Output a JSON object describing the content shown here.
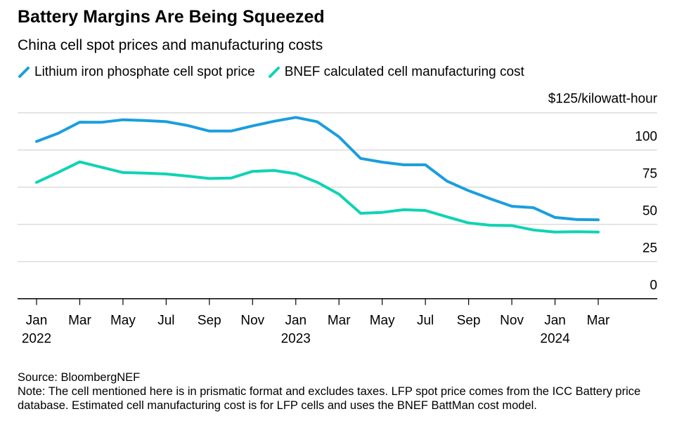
{
  "title": "Battery Margins Are Being Squeezed",
  "subtitle": "China cell spot prices and manufacturing costs",
  "legend": [
    {
      "label": "Lithium iron phosphate cell spot price",
      "color": "#1a9ede"
    },
    {
      "label": "BNEF calculated cell manufacturing cost",
      "color": "#0fd3b4"
    }
  ],
  "footer": {
    "source": "Source: BloombergNEF",
    "note": "Note: The cell mentioned here is in prismatic format and excludes taxes. LFP spot price comes from the ICC Battery price database. Estimated cell manufacturing cost is for LFP cells and uses the BNEF BattMan cost model."
  },
  "chart_data": {
    "type": "line",
    "title": "Battery Margins Are Being Squeezed",
    "ylabel": "$125/kilowatt-hour",
    "ylim": [
      0,
      125
    ],
    "yticks": [
      0,
      25,
      50,
      75,
      100
    ],
    "ytick_top_label": "$125/kilowatt-hour",
    "grid": true,
    "y_axis_side": "right",
    "legend_placement": "top-left",
    "x": [
      "2022-01",
      "2022-02",
      "2022-03",
      "2022-04",
      "2022-05",
      "2022-06",
      "2022-07",
      "2022-08",
      "2022-09",
      "2022-10",
      "2022-11",
      "2022-12",
      "2023-01",
      "2023-02",
      "2023-03",
      "2023-04",
      "2023-05",
      "2023-06",
      "2023-07",
      "2023-08",
      "2023-09",
      "2023-10",
      "2023-11",
      "2023-12",
      "2024-01",
      "2024-02",
      "2024-03"
    ],
    "xticks": [
      {
        "month": "2022-01",
        "label": "Jan",
        "year": "2022"
      },
      {
        "month": "2022-03",
        "label": "Mar"
      },
      {
        "month": "2022-05",
        "label": "May"
      },
      {
        "month": "2022-07",
        "label": "Jul"
      },
      {
        "month": "2022-09",
        "label": "Sep"
      },
      {
        "month": "2022-11",
        "label": "Nov"
      },
      {
        "month": "2023-01",
        "label": "Jan",
        "year": "2023"
      },
      {
        "month": "2023-03",
        "label": "Mar"
      },
      {
        "month": "2023-05",
        "label": "May"
      },
      {
        "month": "2023-07",
        "label": "Jul"
      },
      {
        "month": "2023-09",
        "label": "Sep"
      },
      {
        "month": "2023-11",
        "label": "Nov"
      },
      {
        "month": "2024-01",
        "label": "Jan",
        "year": "2024"
      },
      {
        "month": "2024-03",
        "label": "Mar"
      }
    ],
    "series": [
      {
        "name": "Lithium iron phosphate cell spot price",
        "color": "#1a9ede",
        "values": [
          105.7,
          111.2,
          118.7,
          118.6,
          120.3,
          119.8,
          119.0,
          116.4,
          112.7,
          112.7,
          116.2,
          119.3,
          121.9,
          118.9,
          108.8,
          94.3,
          91.8,
          90.0,
          90.0,
          79.0,
          72.6,
          67.2,
          62.1,
          61.2,
          54.6,
          53.2,
          53.0
        ]
      },
      {
        "name": "BNEF calculated cell manufacturing cost",
        "color": "#0fd3b4",
        "values": [
          78.2,
          84.9,
          92.0,
          88.4,
          84.8,
          84.4,
          83.8,
          82.4,
          80.8,
          81.1,
          85.6,
          86.2,
          84.0,
          78.2,
          70.3,
          57.4,
          58.0,
          59.8,
          59.3,
          55.0,
          50.9,
          49.4,
          49.1,
          46.2,
          44.8,
          45.0,
          44.8
        ]
      }
    ]
  }
}
